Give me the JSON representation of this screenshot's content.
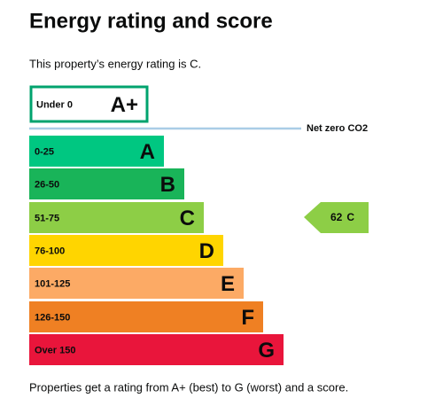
{
  "title": "Energy rating and score",
  "intro": "This property’s energy rating is C.",
  "net_zero": "Net zero CO2",
  "bands": [
    {
      "range": "Under 0",
      "letter": "A+",
      "color": "#ffffff",
      "border": "#00a36e"
    },
    {
      "range": "0-25",
      "letter": "A",
      "color": "#00c781"
    },
    {
      "range": "26-50",
      "letter": "B",
      "color": "#19b459"
    },
    {
      "range": "51-75",
      "letter": "C",
      "color": "#8dce46"
    },
    {
      "range": "76-100",
      "letter": "D",
      "color": "#ffd500"
    },
    {
      "range": "101-125",
      "letter": "E",
      "color": "#fcaa65"
    },
    {
      "range": "126-150",
      "letter": "F",
      "color": "#ef8023"
    },
    {
      "range": "Over 150",
      "letter": "G",
      "color": "#e9153b"
    }
  ],
  "current": {
    "score": 62,
    "rating": "C",
    "color": "#8dce46"
  },
  "footer": "Properties get a rating from A+ (best) to G (worst) and a score."
}
